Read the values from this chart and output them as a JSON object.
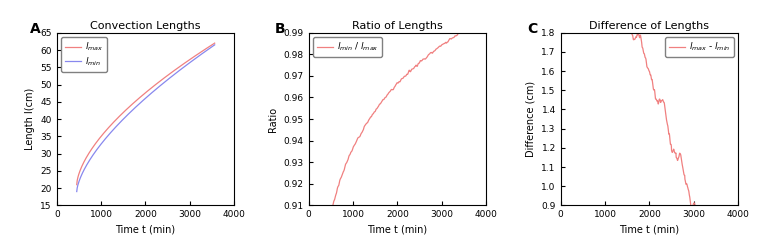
{
  "title_A": "Convection Lengths",
  "title_B": "Ratio of Lengths",
  "title_C": "Difference of Lengths",
  "xlabel": "Time t (min)",
  "ylabel_A": "Length l(cm)",
  "ylabel_B": "Ratio",
  "ylabel_C": "Difference (cm)",
  "label_A": "A",
  "label_B": "B",
  "label_C": "C",
  "xlim": [
    0,
    4000
  ],
  "ylim_A": [
    15,
    65
  ],
  "ylim_B": [
    0.91,
    0.99
  ],
  "ylim_C": [
    0.9,
    1.8
  ],
  "xticks_A": [
    0,
    1000,
    2000,
    3000,
    4000
  ],
  "xticks_B": [
    0,
    1000,
    2000,
    3000,
    4000
  ],
  "xticks_C": [
    0,
    1000,
    2000,
    3000,
    4000
  ],
  "yticks_A": [
    15,
    20,
    25,
    30,
    35,
    40,
    45,
    50,
    55,
    60,
    65
  ],
  "yticks_B": [
    0.91,
    0.92,
    0.93,
    0.94,
    0.95,
    0.96,
    0.97,
    0.98,
    0.99
  ],
  "yticks_C": [
    0.9,
    1.0,
    1.1,
    1.2,
    1.3,
    1.4,
    1.5,
    1.6,
    1.7,
    1.8
  ],
  "color_red": "#f08080",
  "color_blue": "#8888ee",
  "t_start": 450,
  "t_end": 3560,
  "n_points": 600
}
